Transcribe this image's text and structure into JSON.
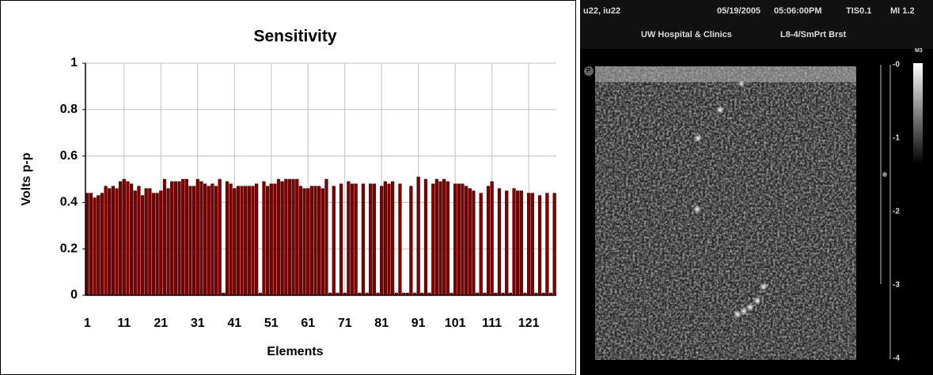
{
  "chart_data": {
    "type": "bar",
    "title": "Sensitivity",
    "x_label": "Elements",
    "y_label": "Volts p-p",
    "categories": [
      "1",
      null,
      null,
      null,
      null,
      null,
      null,
      null,
      null,
      null,
      "11",
      null,
      null,
      null,
      null,
      null,
      null,
      null,
      null,
      null,
      "21",
      null,
      null,
      null,
      null,
      null,
      null,
      null,
      null,
      null,
      "31",
      null,
      null,
      null,
      null,
      null,
      null,
      null,
      null,
      null,
      "41",
      null,
      null,
      null,
      null,
      null,
      null,
      null,
      null,
      null,
      "51",
      null,
      null,
      null,
      null,
      null,
      null,
      null,
      null,
      null,
      "61",
      null,
      null,
      null,
      null,
      null,
      null,
      null,
      null,
      null,
      "71",
      null,
      null,
      null,
      null,
      null,
      null,
      null,
      null,
      null,
      "81",
      null,
      null,
      null,
      null,
      null,
      null,
      null,
      null,
      null,
      "91",
      null,
      null,
      null,
      null,
      null,
      null,
      null,
      null,
      null,
      "101",
      null,
      null,
      null,
      null,
      null,
      null,
      null,
      null,
      null,
      "111",
      null,
      null,
      null,
      null,
      null,
      null,
      null,
      null,
      null,
      "121",
      null,
      null,
      null,
      null,
      null,
      null,
      null
    ],
    "values": [
      0.44,
      0.44,
      0.42,
      0.43,
      0.44,
      0.47,
      0.46,
      0.47,
      0.46,
      0.49,
      0.5,
      0.49,
      0.48,
      0.45,
      0.47,
      0.43,
      0.46,
      0.46,
      0.44,
      0.44,
      0.45,
      0.5,
      0.46,
      0.49,
      0.49,
      0.49,
      0.5,
      0.5,
      0.47,
      0.47,
      0.5,
      0.49,
      0.48,
      0.47,
      0.48,
      0.47,
      0.5,
      0.01,
      0.49,
      0.48,
      0.46,
      0.47,
      0.47,
      0.47,
      0.47,
      0.47,
      0.48,
      0.01,
      0.49,
      0.47,
      0.48,
      0.48,
      0.5,
      0.49,
      0.5,
      0.5,
      0.5,
      0.5,
      0.47,
      0.46,
      0.46,
      0.47,
      0.47,
      0.47,
      0.46,
      0.5,
      0.01,
      0.47,
      0.01,
      0.48,
      0.01,
      0.49,
      0.48,
      0.48,
      0.01,
      0.48,
      0.01,
      0.48,
      0.48,
      0.01,
      0.47,
      0.49,
      0.48,
      0.49,
      0.01,
      0.48,
      0.01,
      0.01,
      0.47,
      0.01,
      0.51,
      0.01,
      0.5,
      0.01,
      0.48,
      0.5,
      0.49,
      0.5,
      0.49,
      0.01,
      0.48,
      0.48,
      0.48,
      0.47,
      0.46,
      0.45,
      0.01,
      0.44,
      0.01,
      0.47,
      0.49,
      0.01,
      0.46,
      0.01,
      0.45,
      0.01,
      0.46,
      0.45,
      0.45,
      0.01,
      0.44,
      0.44,
      0.01,
      0.43,
      0.01,
      0.44,
      0.01,
      0.44
    ],
    "color": "#800000",
    "ylim": [
      0,
      1
    ],
    "yticks": [
      0,
      0.2,
      0.4,
      0.6,
      0.8,
      1
    ],
    "grid": true
  },
  "ultrasound": {
    "system": "u22, iu22",
    "date": "05/19/2005",
    "time": "05:06:00PM",
    "tis": "TIS0.1",
    "mi": "MI 1.2",
    "site": "UW Hospital & Clinics",
    "preset": "L8-4/SmPrt Brst",
    "map": "M3",
    "probe_marker": "P",
    "depth_labels": [
      "-0",
      "-1",
      "-2",
      "-3",
      "-4"
    ]
  }
}
